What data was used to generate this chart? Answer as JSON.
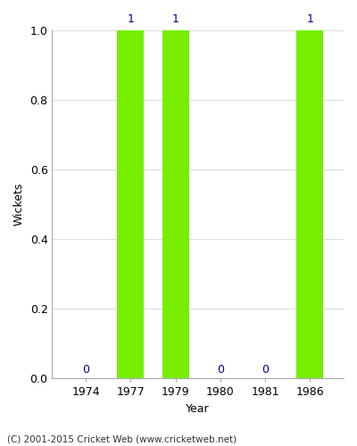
{
  "years": [
    "1974",
    "1977",
    "1979",
    "1980",
    "1981",
    "1986"
  ],
  "wickets": [
    0,
    1,
    1,
    0,
    0,
    1
  ],
  "bar_color": "#77ee00",
  "label_color": "#000099",
  "xlabel": "Year",
  "ylabel": "Wickets",
  "ylim": [
    0.0,
    1.0
  ],
  "bar_width": 0.6,
  "footer": "(C) 2001-2015 Cricket Web (www.cricketweb.net)",
  "bg_color": "#ffffff",
  "grid_color": "#dddddd"
}
